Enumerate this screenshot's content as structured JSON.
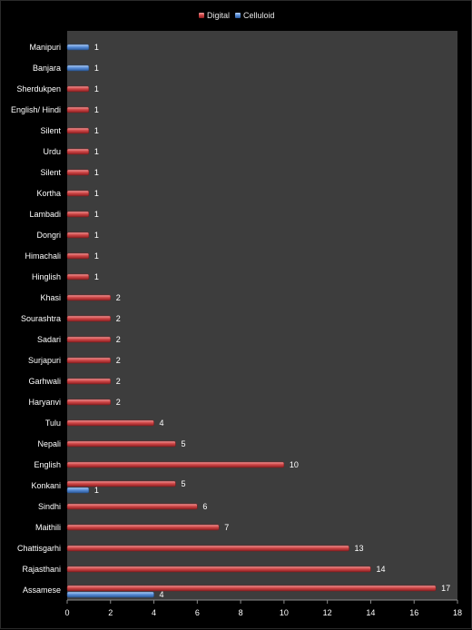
{
  "chart_data": {
    "type": "bar",
    "orientation": "horizontal",
    "categories": [
      "Manipuri",
      "Banjara",
      "Sherdukpen",
      "English/ Hindi",
      "Silent",
      "Urdu",
      "Silent",
      "Kortha",
      "Lambadi",
      "Dongri",
      "Himachali",
      "Hinglish",
      "Khasi",
      "Sourashtra",
      "Sadari",
      "Surjapuri",
      "Garhwali",
      "Haryanvi",
      "Tulu",
      "Nepali",
      "English",
      "Konkani",
      "Sindhi",
      "Maithili",
      "Chattisgarhi",
      "Rajasthani",
      "Assamese"
    ],
    "series": [
      {
        "name": "Digital",
        "color": "#c0393b",
        "values": [
          null,
          null,
          1,
          1,
          1,
          1,
          1,
          1,
          1,
          1,
          1,
          1,
          2,
          2,
          2,
          2,
          2,
          2,
          4,
          5,
          10,
          5,
          6,
          7,
          13,
          14,
          17
        ]
      },
      {
        "name": "Celluloid",
        "color": "#4a7fc9",
        "values": [
          1,
          1,
          null,
          null,
          null,
          null,
          null,
          null,
          null,
          null,
          null,
          null,
          null,
          null,
          null,
          null,
          null,
          null,
          null,
          null,
          null,
          1,
          null,
          null,
          null,
          null,
          4
        ]
      }
    ],
    "xlim": [
      0,
      18
    ],
    "xticks": [
      0,
      2,
      4,
      6,
      8,
      10,
      12,
      14,
      16,
      18
    ],
    "legend_position": "top-center",
    "grid": false,
    "plot_background": "#3d3d3d",
    "page_background": "#000000"
  }
}
